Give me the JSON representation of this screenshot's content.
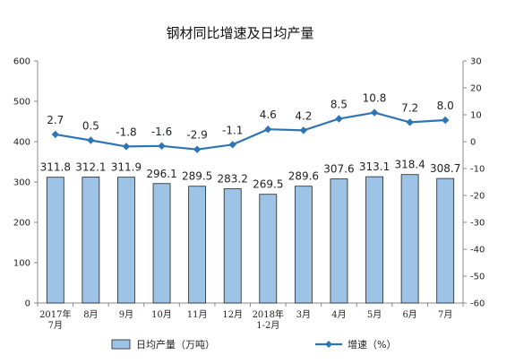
{
  "chart_data": {
    "type": "bar",
    "title": "钢材同比增速及日均产量",
    "categories": [
      [
        "2017年",
        "7月"
      ],
      [
        "8月"
      ],
      [
        "9月"
      ],
      [
        "10月"
      ],
      [
        "11月"
      ],
      [
        "12月"
      ],
      [
        "2018年",
        "1-2月"
      ],
      [
        "3月"
      ],
      [
        "4月"
      ],
      [
        "5月"
      ],
      [
        "6月"
      ],
      [
        "7月"
      ]
    ],
    "series": [
      {
        "name": "日均产量（万吨）",
        "type": "bar",
        "axis": "left",
        "color": "#9dc3e6",
        "values": [
          311.8,
          312.1,
          311.9,
          296.1,
          289.5,
          283.2,
          269.5,
          289.6,
          307.6,
          313.1,
          318.4,
          308.7
        ],
        "labels": [
          "311.8",
          "312.1",
          "311.9",
          "296.1",
          "289.5",
          "283.2",
          "269.5",
          "289.6",
          "307.6",
          "313.1",
          "318.4",
          "308.7"
        ]
      },
      {
        "name": "增速（%）",
        "type": "line",
        "axis": "right",
        "color": "#2e75b6",
        "values": [
          2.7,
          0.5,
          -1.8,
          -1.6,
          -2.9,
          -1.1,
          4.6,
          4.2,
          8.5,
          10.8,
          7.2,
          8.0
        ],
        "labels": [
          "2.7",
          "0.5",
          "-1.8",
          "-1.6",
          "-2.9",
          "-1.1",
          "4.6",
          "4.2",
          "8.5",
          "10.8",
          "7.2",
          "8.0"
        ]
      }
    ],
    "left_axis": {
      "ylim": [
        0,
        600
      ],
      "ticks": [
        "0",
        "100",
        "200",
        "300",
        "400",
        "500",
        "600"
      ]
    },
    "right_axis": {
      "ylim": [
        -60,
        30
      ],
      "ticks": [
        "-60",
        "-50",
        "-40",
        "-30",
        "-20",
        "-10",
        "0",
        "10",
        "20",
        "30"
      ]
    },
    "grid": false,
    "legend_position": "bottom"
  }
}
